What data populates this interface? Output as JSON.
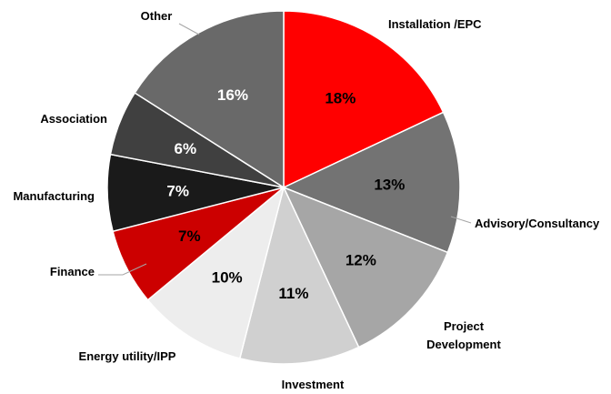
{
  "chart_data": {
    "type": "pie",
    "title": "",
    "start_angle_deg": 0,
    "direction": "clockwise",
    "legend": "none",
    "slices": [
      {
        "category": "Installation /EPC",
        "value": 18,
        "label": "18%",
        "color": "#ff0000",
        "text_color": "#000000"
      },
      {
        "category": "Advisory/Consultancy",
        "value": 13,
        "label": "13%",
        "color": "#737373",
        "text_color": "#000000"
      },
      {
        "category": "Project Development",
        "value": 12,
        "label": "12%",
        "color": "#a6a6a6",
        "text_color": "#000000"
      },
      {
        "category": "Investment",
        "value": 11,
        "label": "11%",
        "color": "#d0d0d0",
        "text_color": "#000000"
      },
      {
        "category": "Energy utility/IPP",
        "value": 10,
        "label": "10%",
        "color": "#ededed",
        "text_color": "#000000"
      },
      {
        "category": "Finance",
        "value": 7,
        "label": "7%",
        "color": "#cc0000",
        "text_color": "#000000"
      },
      {
        "category": "Manufacturing",
        "value": 7,
        "label": "7%",
        "color": "#1a1a1a",
        "text_color": "#ffffff"
      },
      {
        "category": "Association",
        "value": 6,
        "label": "6%",
        "color": "#404040",
        "text_color": "#ffffff"
      },
      {
        "category": "Other",
        "value": 16,
        "label": "16%",
        "color": "#696969",
        "text_color": "#ffffff"
      }
    ]
  }
}
